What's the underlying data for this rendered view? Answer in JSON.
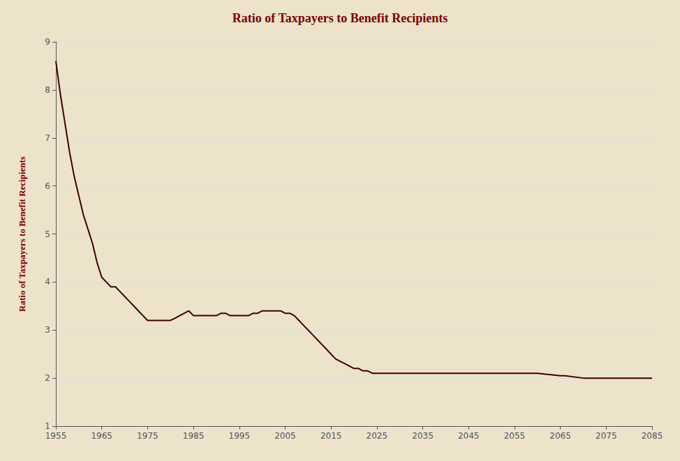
{
  "chart_data": {
    "type": "line",
    "title": "Ratio of Taxpayers to Benefit Recipients",
    "ylabel": "Ratio of Taxpayers to Benefit Recipients",
    "color": "#3d0000",
    "grid": "y",
    "xlim": [
      1955,
      2085
    ],
    "ylim": [
      1,
      9
    ],
    "xticks": [
      1955,
      1965,
      1975,
      1985,
      1995,
      2005,
      2015,
      2025,
      2035,
      2045,
      2055,
      2065,
      2075,
      2085
    ],
    "yticks": [
      1,
      2,
      3,
      4,
      5,
      6,
      7,
      8,
      9
    ],
    "x": [
      1955,
      1956,
      1957,
      1958,
      1959,
      1960,
      1961,
      1962,
      1963,
      1964,
      1965,
      1966,
      1967,
      1968,
      1969,
      1970,
      1971,
      1972,
      1973,
      1974,
      1975,
      1976,
      1977,
      1978,
      1979,
      1980,
      1981,
      1982,
      1983,
      1984,
      1985,
      1986,
      1987,
      1988,
      1989,
      1990,
      1991,
      1992,
      1993,
      1994,
      1995,
      1996,
      1997,
      1998,
      1999,
      2000,
      2001,
      2002,
      2003,
      2004,
      2005,
      2006,
      2007,
      2008,
      2009,
      2010,
      2011,
      2012,
      2013,
      2014,
      2015,
      2016,
      2017,
      2018,
      2019,
      2020,
      2021,
      2022,
      2023,
      2024,
      2025,
      2026,
      2027,
      2028,
      2029,
      2030,
      2031,
      2032,
      2033,
      2034,
      2035,
      2036,
      2037,
      2038,
      2039,
      2040,
      2041,
      2042,
      2043,
      2044,
      2045,
      2050,
      2055,
      2060,
      2065,
      2066,
      2070,
      2075,
      2080,
      2085
    ],
    "values": [
      8.6,
      7.9,
      7.3,
      6.7,
      6.2,
      5.8,
      5.4,
      5.1,
      4.8,
      4.4,
      4.1,
      4.0,
      3.9,
      3.9,
      3.8,
      3.7,
      3.6,
      3.5,
      3.4,
      3.3,
      3.2,
      3.2,
      3.2,
      3.2,
      3.2,
      3.2,
      3.25,
      3.3,
      3.35,
      3.4,
      3.3,
      3.3,
      3.3,
      3.3,
      3.3,
      3.3,
      3.35,
      3.35,
      3.3,
      3.3,
      3.3,
      3.3,
      3.3,
      3.35,
      3.35,
      3.4,
      3.4,
      3.4,
      3.4,
      3.4,
      3.35,
      3.35,
      3.3,
      3.2,
      3.1,
      3.0,
      2.9,
      2.8,
      2.7,
      2.6,
      2.5,
      2.4,
      2.35,
      2.3,
      2.25,
      2.2,
      2.2,
      2.15,
      2.15,
      2.1,
      2.1,
      2.1,
      2.1,
      2.1,
      2.1,
      2.1,
      2.1,
      2.1,
      2.1,
      2.1,
      2.1,
      2.1,
      2.1,
      2.1,
      2.1,
      2.1,
      2.1,
      2.1,
      2.1,
      2.1,
      2.1,
      2.1,
      2.1,
      2.1,
      2.05,
      2.05,
      2.0,
      2.0,
      2.0,
      2.0
    ]
  }
}
